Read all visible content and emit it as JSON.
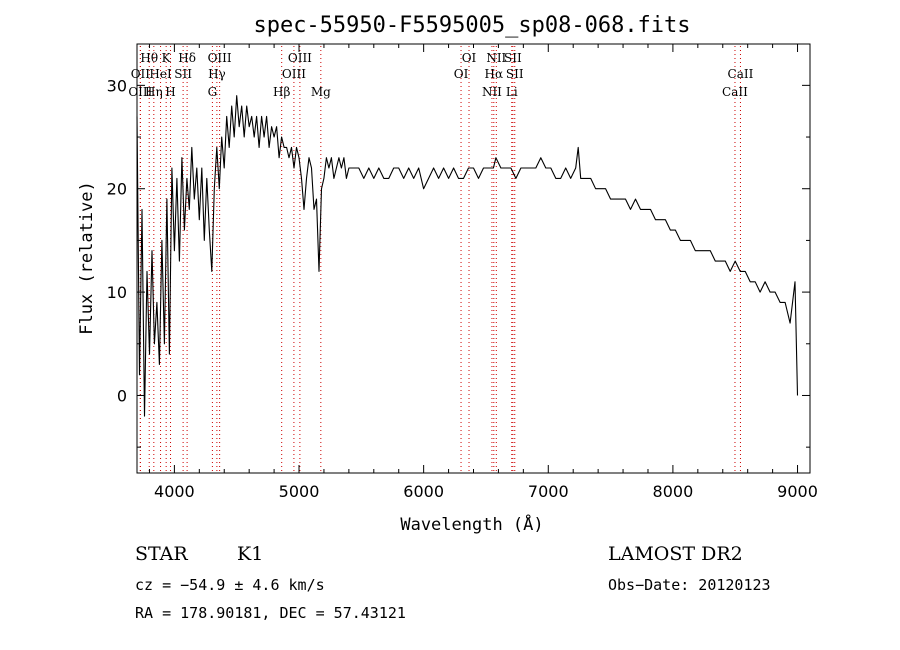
{
  "chart_data": {
    "type": "line",
    "title": "spec-55950-F5595005_sp08-068.fits",
    "xlabel": "Wavelength (Å)",
    "ylabel": "Flux (relative)",
    "xlim": [
      3700,
      9100
    ],
    "ylim": [
      -7.5,
      34
    ],
    "x_ticks": [
      4000,
      5000,
      6000,
      7000,
      8000,
      9000
    ],
    "y_ticks": [
      0,
      10,
      20,
      30
    ],
    "grid": false,
    "legend": "none",
    "line_color": "#000000",
    "marker_line_color": "#cc0000",
    "series": [
      {
        "x": [
          3700,
          3720,
          3740,
          3760,
          3780,
          3800,
          3820,
          3840,
          3860,
          3880,
          3900,
          3920,
          3940,
          3960,
          3980,
          4000,
          4020,
          4040,
          4060,
          4080,
          4100,
          4120,
          4140,
          4160,
          4180,
          4200,
          4220,
          4240,
          4260,
          4280,
          4300,
          4320,
          4340,
          4360,
          4380,
          4400,
          4420,
          4440,
          4460,
          4480,
          4500,
          4520,
          4540,
          4560,
          4580,
          4600,
          4620,
          4640,
          4660,
          4680,
          4700,
          4720,
          4740,
          4760,
          4780,
          4800,
          4820,
          4840,
          4860,
          4880,
          4900,
          4920,
          4940,
          4960,
          4980,
          5000,
          5020,
          5040,
          5060,
          5080,
          5100,
          5120,
          5140,
          5160,
          5180,
          5200,
          5220,
          5240,
          5260,
          5280,
          5300,
          5320,
          5340,
          5360,
          5380,
          5400,
          5440,
          5480,
          5520,
          5560,
          5600,
          5640,
          5680,
          5720,
          5760,
          5800,
          5840,
          5880,
          5920,
          5960,
          6000,
          6040,
          6080,
          6120,
          6160,
          6200,
          6240,
          6280,
          6320,
          6360,
          6400,
          6440,
          6480,
          6520,
          6560,
          6580,
          6620,
          6660,
          6700,
          6740,
          6780,
          6820,
          6860,
          6900,
          6940,
          6980,
          7020,
          7060,
          7100,
          7140,
          7180,
          7220,
          7240,
          7260,
          7300,
          7340,
          7380,
          7420,
          7460,
          7500,
          7540,
          7580,
          7620,
          7660,
          7700,
          7740,
          7780,
          7820,
          7860,
          7900,
          7940,
          7980,
          8020,
          8060,
          8100,
          8140,
          8180,
          8220,
          8260,
          8300,
          8340,
          8380,
          8420,
          8460,
          8500,
          8540,
          8580,
          8620,
          8660,
          8700,
          8740,
          8780,
          8820,
          8860,
          8900,
          8940,
          8980,
          9000
        ],
        "values": [
          27,
          2,
          18,
          -2,
          12,
          4,
          14,
          5,
          9,
          3,
          15,
          5,
          19,
          4,
          22,
          14,
          21,
          13,
          23,
          16,
          21,
          18,
          24,
          19,
          22,
          17,
          22,
          15,
          21,
          16,
          12,
          20,
          24,
          20,
          25,
          22,
          27,
          24,
          28,
          25,
          29,
          26,
          28,
          25,
          28,
          26,
          27,
          25,
          27,
          24,
          27,
          25,
          27,
          24,
          26,
          25,
          26,
          23,
          25,
          24,
          24,
          23,
          24,
          22,
          24,
          23,
          21,
          18,
          21,
          23,
          22,
          18,
          19,
          12,
          20,
          21,
          23,
          22,
          23,
          21,
          22,
          23,
          22,
          23,
          21,
          22,
          22,
          22,
          21,
          22,
          21,
          22,
          21,
          21,
          22,
          22,
          21,
          22,
          21,
          22,
          20,
          21,
          22,
          21,
          22,
          21,
          22,
          21,
          21,
          22,
          22,
          21,
          22,
          22,
          22,
          23,
          22,
          22,
          22,
          21,
          22,
          22,
          22,
          22,
          23,
          22,
          22,
          21,
          21,
          22,
          21,
          22,
          24,
          21,
          21,
          21,
          20,
          20,
          20,
          19,
          19,
          19,
          19,
          18,
          19,
          18,
          18,
          18,
          17,
          17,
          17,
          16,
          16,
          15,
          15,
          15,
          14,
          14,
          14,
          14,
          13,
          13,
          13,
          12,
          13,
          12,
          12,
          11,
          11,
          10,
          11,
          10,
          10,
          9,
          9,
          7,
          11,
          0
        ]
      }
    ],
    "spectral_lines": [
      {
        "label": "Hθ",
        "x": 3798,
        "row": 1
      },
      {
        "label": "OII",
        "x": 3727,
        "row": 2
      },
      {
        "label": "OIII",
        "x": 3727,
        "row": 3
      },
      {
        "label": "K",
        "x": 3934,
        "row": 1
      },
      {
        "label": "HeI",
        "x": 3889,
        "row": 2
      },
      {
        "label": "Hη",
        "x": 3835,
        "row": 3
      },
      {
        "label": "Hδ",
        "x": 4102,
        "row": 1
      },
      {
        "label": "SII",
        "x": 4070,
        "row": 2
      },
      {
        "label": "H",
        "x": 3969,
        "row": 3
      },
      {
        "label": "OIII",
        "x": 4363,
        "row": 1
      },
      {
        "label": "Hγ",
        "x": 4341,
        "row": 2
      },
      {
        "label": "G",
        "x": 4305,
        "row": 3
      },
      {
        "label": "Hβ",
        "x": 4861,
        "row": 3
      },
      {
        "label": "OIII",
        "x": 5007,
        "row": 1
      },
      {
        "label": "OIII",
        "x": 4959,
        "row": 2
      },
      {
        "label": "Mg",
        "x": 5175,
        "row": 3
      },
      {
        "label": "OI",
        "x": 6364,
        "row": 1
      },
      {
        "label": "OI",
        "x": 6300,
        "row": 2
      },
      {
        "label": "NII",
        "x": 6583,
        "row": 1
      },
      {
        "label": "SII",
        "x": 6716,
        "row": 1
      },
      {
        "label": "Hα",
        "x": 6563,
        "row": 2
      },
      {
        "label": "SII",
        "x": 6731,
        "row": 2
      },
      {
        "label": "NII",
        "x": 6548,
        "row": 3
      },
      {
        "label": "Li",
        "x": 6707,
        "row": 3
      },
      {
        "label": "CaII",
        "x": 8542,
        "row": 2
      },
      {
        "label": "CaII",
        "x": 8498,
        "row": 3
      }
    ]
  },
  "footer": {
    "class_label": "STAR",
    "subclass": "K1",
    "survey": "LAMOST DR2",
    "cz": "cz = −54.9 ± 4.6 km/s",
    "obs_date": "Obs−Date: 20120123",
    "coords": "RA = 178.90181, DEC =  57.43121"
  }
}
